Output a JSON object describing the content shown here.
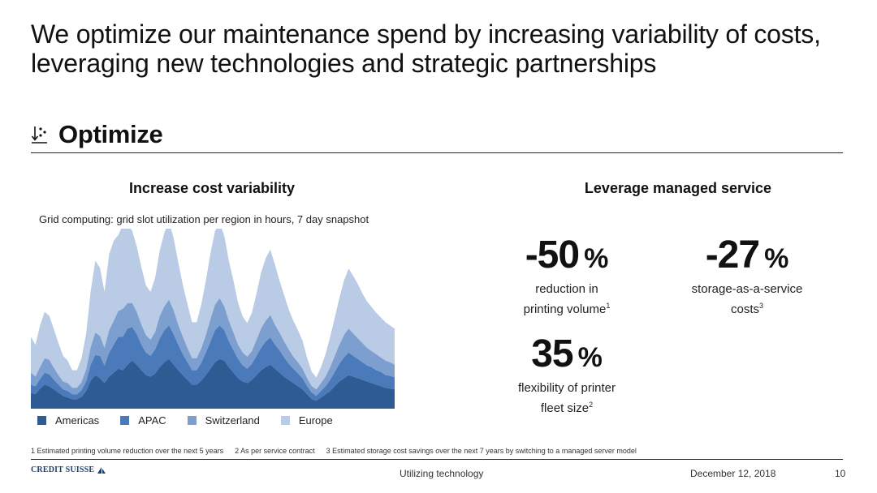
{
  "slide": {
    "title": "We optimize our maintenance spend by increasing variability of costs, leveraging new technologies and strategic partnerships",
    "section_title": "Optimize",
    "section_icon": "optimize-sort-icon"
  },
  "left": {
    "heading": "Increase cost variability",
    "chart_subtitle": "Grid computing: grid slot utilization per region in hours, 7 day snapshot"
  },
  "right": {
    "heading": "Leverage managed service",
    "stats": [
      {
        "value": "-50",
        "unit": "%",
        "line1": "reduction in",
        "line2": "printing volume",
        "note": "1"
      },
      {
        "value": "-27",
        "unit": "%",
        "line1": "storage-as-a-service",
        "line2": "costs",
        "note": "3"
      },
      {
        "value": "35",
        "unit": "%",
        "line1": "flexibility of printer",
        "line2": "fleet size",
        "note": "2"
      }
    ]
  },
  "footnotes": [
    "1 Estimated printing volume reduction over the next 5 years",
    "2 As per service contract",
    "3 Estimated storage cost savings over the next 7 years by switching to a managed server model"
  ],
  "footer": {
    "logo": "CREDIT SUISSE",
    "center": "Utilizing technology",
    "date": "December 12, 2018",
    "page": "10"
  },
  "colors": {
    "Americas": "#2f5b95",
    "APAC": "#4a7ab9",
    "Switzerland": "#7d9fcf",
    "Europe": "#b9cbe5"
  },
  "chart_data": {
    "type": "area",
    "stacked": true,
    "title": "Grid computing: grid slot utilization per region in hours, 7 day snapshot",
    "xlabel": "",
    "ylabel": "",
    "x": [
      1,
      2,
      3,
      4,
      5,
      6,
      7,
      8,
      9,
      10,
      11,
      12,
      13,
      14,
      15,
      16,
      17,
      18,
      19,
      20,
      21,
      22,
      23,
      24,
      25,
      26,
      27,
      28,
      29,
      30,
      31,
      32,
      33,
      34,
      35,
      36,
      37,
      38,
      39,
      40,
      41,
      42,
      43,
      44,
      45,
      46,
      47,
      48,
      49,
      50,
      51,
      52,
      53,
      54,
      55,
      56,
      57,
      58,
      59,
      60,
      61,
      62,
      63,
      64,
      65,
      66,
      67,
      68,
      69,
      70,
      71,
      72,
      73,
      74,
      75,
      76,
      77,
      78,
      79,
      80
    ],
    "ylim": [
      0,
      225
    ],
    "grid": false,
    "legend_position": "bottom",
    "series": [
      {
        "name": "Americas",
        "values": [
          20,
          18,
          25,
          30,
          28,
          24,
          20,
          16,
          14,
          12,
          12,
          15,
          22,
          35,
          42,
          38,
          32,
          40,
          45,
          50,
          48,
          55,
          60,
          55,
          48,
          42,
          40,
          44,
          52,
          58,
          62,
          55,
          48,
          42,
          36,
          30,
          30,
          35,
          42,
          50,
          58,
          62,
          60,
          52,
          45,
          38,
          34,
          32,
          36,
          42,
          48,
          52,
          55,
          50,
          45,
          40,
          36,
          32,
          28,
          24,
          18,
          12,
          10,
          14,
          18,
          22,
          28,
          34,
          38,
          42,
          40,
          38,
          36,
          34,
          32,
          30,
          28,
          26,
          25,
          24
        ]
      },
      {
        "name": "APAC",
        "values": [
          10,
          10,
          12,
          15,
          15,
          12,
          10,
          8,
          8,
          6,
          6,
          8,
          12,
          20,
          25,
          28,
          22,
          30,
          35,
          40,
          42,
          45,
          42,
          38,
          32,
          28,
          26,
          30,
          36,
          40,
          42,
          38,
          32,
          26,
          22,
          18,
          18,
          22,
          28,
          34,
          40,
          42,
          38,
          32,
          28,
          24,
          20,
          18,
          20,
          24,
          28,
          32,
          34,
          30,
          28,
          24,
          20,
          18,
          16,
          14,
          10,
          8,
          6,
          8,
          10,
          14,
          18,
          22,
          26,
          28,
          26,
          24,
          22,
          20,
          20,
          18,
          18,
          16,
          16,
          15
        ]
      },
      {
        "name": "Switzerland",
        "values": [
          15,
          12,
          15,
          18,
          18,
          15,
          12,
          10,
          10,
          8,
          8,
          10,
          15,
          22,
          28,
          25,
          22,
          28,
          30,
          32,
          35,
          32,
          30,
          28,
          25,
          22,
          20,
          22,
          28,
          30,
          32,
          30,
          25,
          22,
          18,
          15,
          15,
          18,
          22,
          28,
          32,
          34,
          30,
          26,
          22,
          18,
          16,
          15,
          16,
          20,
          24,
          26,
          28,
          25,
          22,
          20,
          18,
          15,
          14,
          12,
          10,
          8,
          8,
          10,
          12,
          16,
          20,
          24,
          28,
          30,
          28,
          26,
          24,
          22,
          20,
          20,
          18,
          18,
          17,
          16
        ]
      },
      {
        "name": "Europe",
        "values": [
          45,
          40,
          52,
          58,
          55,
          48,
          40,
          32,
          28,
          22,
          22,
          30,
          45,
          70,
          90,
          85,
          70,
          95,
          100,
          95,
          105,
          100,
          90,
          82,
          72,
          62,
          60,
          68,
          82,
          92,
          98,
          90,
          78,
          65,
          55,
          45,
          45,
          55,
          68,
          82,
          92,
          95,
          88,
          75,
          65,
          52,
          45,
          42,
          48,
          58,
          70,
          78,
          82,
          75,
          65,
          58,
          50,
          45,
          40,
          35,
          25,
          18,
          15,
          20,
          28,
          38,
          48,
          58,
          68,
          75,
          72,
          68,
          62,
          58,
          55,
          52,
          50,
          48,
          46,
          45
        ]
      }
    ]
  }
}
